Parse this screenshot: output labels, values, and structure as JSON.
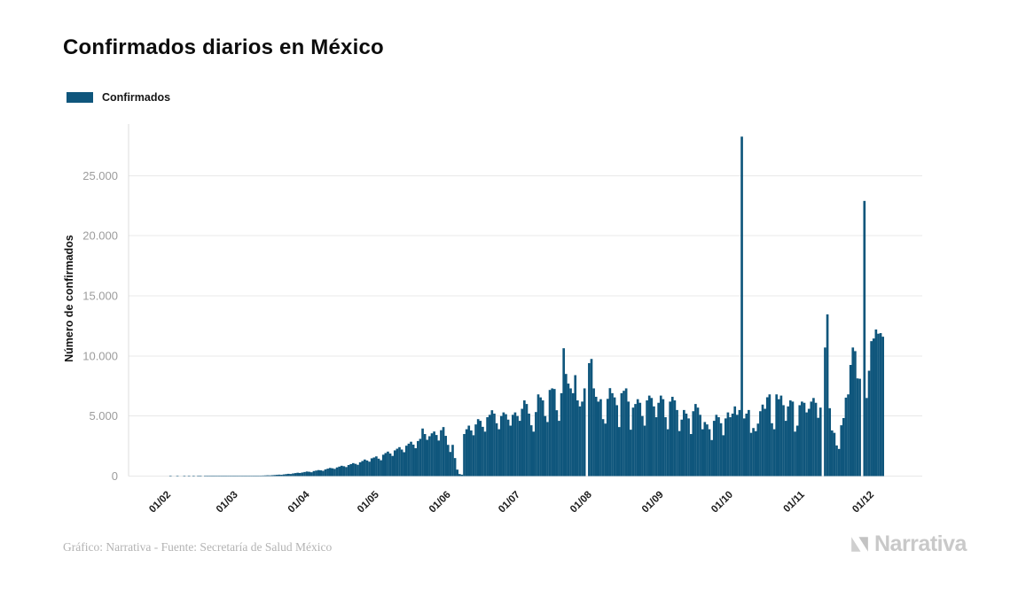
{
  "title": "Confirmados diarios en México",
  "legend": {
    "label": "Confirmados",
    "swatch_color": "#0F567C"
  },
  "footer": {
    "credit": "Gráfico: Narrativa - Fuente: Secretaría de Salud México",
    "brand": "Narrativa"
  },
  "colors": {
    "bar": "#0F567C",
    "grid": "#e8e8e8",
    "axis": "#dcdcdc",
    "y_tick_text": "#9c9c9c",
    "x_tick_text": "#1c1c1c",
    "title_text": "#0d0d0d",
    "credit_text": "#b3b3b3",
    "logo_gray": "#c9c9c9"
  },
  "chart_data": {
    "type": "bar",
    "title": "Confirmados diarios en México",
    "xlabel": "",
    "ylabel": "Número de confirmados",
    "ylim": [
      0,
      29300
    ],
    "grid": "horizontal",
    "legend_position": "top-left",
    "y_ticks": [
      0,
      5000,
      10000,
      15000,
      20000,
      25000
    ],
    "y_tick_labels": [
      "0",
      "5.000",
      "10.000",
      "15.000",
      "20.000",
      "25.000"
    ],
    "x_tick_labels": [
      "01/02",
      "01/03",
      "01/04",
      "01/05",
      "01/06",
      "01/07",
      "01/08",
      "01/09",
      "01/10",
      "01/11",
      "01/12"
    ],
    "start_date": "2020-02-01",
    "frequency": "daily",
    "notable_points": [
      {
        "approx_date": "2020-10-07",
        "value": 28250
      },
      {
        "approx_date": "2020-11-29",
        "value": 22900
      },
      {
        "approx_date": "2020-11-13",
        "value": 13460
      },
      {
        "approx_date": "2020-07-22",
        "value": 10640
      }
    ],
    "series": [
      {
        "name": "Confirmados",
        "color": "#0F567C",
        "values": [
          0,
          0,
          1,
          0,
          0,
          2,
          0,
          0,
          1,
          0,
          3,
          0,
          1,
          0,
          2,
          1,
          0,
          4,
          2,
          1,
          3,
          2,
          4,
          3,
          5,
          4,
          6,
          5,
          7,
          8,
          10,
          12,
          9,
          14,
          16,
          20,
          24,
          22,
          28,
          34,
          40,
          38,
          46,
          55,
          65,
          60,
          75,
          90,
          105,
          120,
          110,
          140,
          165,
          190,
          175,
          220,
          250,
          280,
          260,
          300,
          340,
          380,
          360,
          320,
          420,
          460,
          500,
          480,
          440,
          560,
          620,
          680,
          650,
          600,
          720,
          790,
          860,
          820,
          750,
          920,
          1000,
          1080,
          1020,
          940,
          1150,
          1260,
          1380,
          1300,
          1200,
          1480,
          1550,
          1640,
          1450,
          1320,
          1780,
          1920,
          2040,
          1880,
          1680,
          2140,
          2280,
          2410,
          2210,
          1990,
          2530,
          2700,
          2860,
          2620,
          2320,
          2920,
          3100,
          3960,
          3500,
          3020,
          3320,
          3560,
          3710,
          3420,
          2960,
          3820,
          4080,
          3350,
          2600,
          2010,
          2600,
          1500,
          540,
          170,
          120,
          3500,
          3900,
          4200,
          3800,
          3400,
          4300,
          4740,
          4600,
          4100,
          3700,
          4900,
          5100,
          5480,
          5200,
          4400,
          3900,
          5000,
          5300,
          5150,
          4700,
          4200,
          5100,
          5300,
          5000,
          4600,
          5600,
          6300,
          6000,
          5200,
          4230,
          3700,
          5330,
          6800,
          6550,
          6300,
          5000,
          4500,
          7170,
          7300,
          7250,
          5480,
          4600,
          6900,
          10640,
          8500,
          7700,
          7300,
          6900,
          8400,
          6300,
          5800,
          6200,
          7300,
          0,
          9400,
          9750,
          7300,
          6600,
          6200,
          6400,
          4740,
          4370,
          6430,
          7320,
          6900,
          6550,
          5900,
          4080,
          6900,
          7100,
          7300,
          6200,
          3860,
          5700,
          6000,
          6400,
          6100,
          5000,
          4200,
          6300,
          6700,
          6500,
          5800,
          4900,
          6100,
          6700,
          6400,
          4900,
          3900,
          6200,
          6600,
          6300,
          5500,
          3750,
          4700,
          5500,
          5200,
          4800,
          3500,
          5400,
          6000,
          5700,
          5100,
          3900,
          4500,
          4300,
          3900,
          3000,
          4600,
          5100,
          4900,
          4400,
          3400,
          4800,
          5300,
          4900,
          5200,
          5800,
          5100,
          5500,
          28250,
          4800,
          5200,
          5500,
          3600,
          4000,
          3740,
          4370,
          5400,
          5950,
          5600,
          6560,
          6800,
          4400,
          3900,
          6800,
          6400,
          6700,
          5900,
          4600,
          5800,
          6300,
          6200,
          3700,
          4200,
          5900,
          6200,
          6100,
          5300,
          5600,
          6200,
          6500,
          6100,
          4850,
          5700,
          0,
          10700,
          13460,
          5650,
          3800,
          3600,
          2550,
          2260,
          4230,
          4830,
          6530,
          6800,
          9250,
          10700,
          10400,
          8130,
          8100,
          0,
          22900,
          6500,
          8770,
          11230,
          11450,
          12200,
          11850,
          11900,
          11600
        ]
      }
    ]
  }
}
